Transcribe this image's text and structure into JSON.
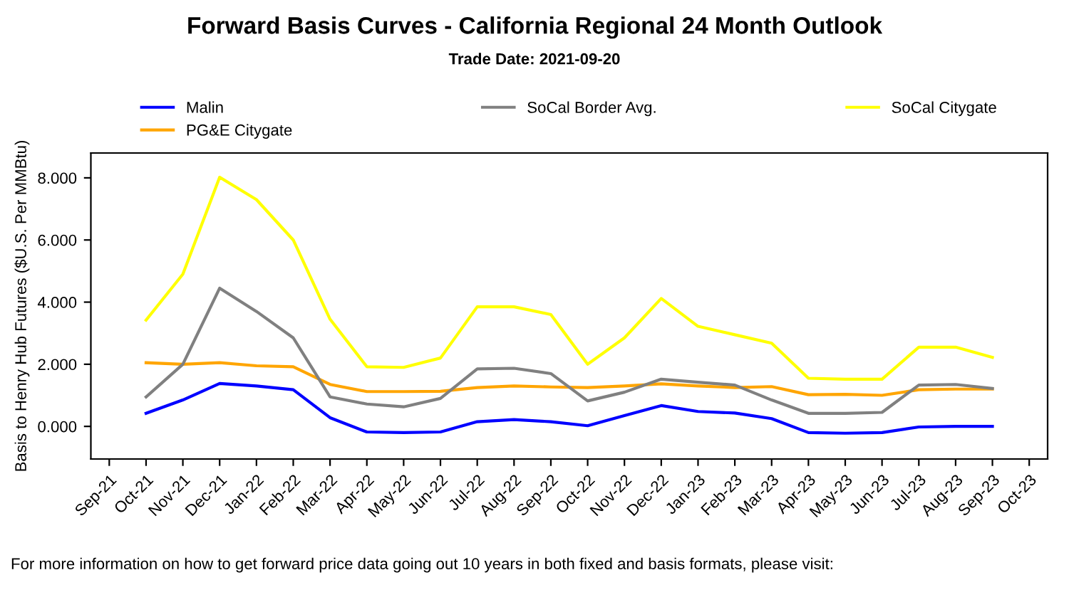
{
  "chart_data": {
    "type": "line",
    "title": "Forward Basis Curves - California Regional 24 Month Outlook",
    "subtitle": "Trade Date: 2021-09-20",
    "ylabel": "Basis to Henry Hub Futures ($U.S. Per MMBtu)",
    "categories": [
      "Sep-21",
      "Oct-21",
      "Nov-21",
      "Dec-21",
      "Jan-22",
      "Feb-22",
      "Mar-22",
      "Apr-22",
      "May-22",
      "Jun-22",
      "Jul-22",
      "Aug-22",
      "Sep-22",
      "Oct-22",
      "Nov-22",
      "Dec-22",
      "Jan-23",
      "Feb-23",
      "Mar-23",
      "Apr-23",
      "May-23",
      "Jun-23",
      "Jul-23",
      "Aug-23",
      "Sep-23",
      "Oct-23"
    ],
    "series": [
      {
        "name": "Malin",
        "color": "#0000ff",
        "values": [
          null,
          0.42,
          0.85,
          1.38,
          1.3,
          1.18,
          0.28,
          -0.18,
          -0.2,
          -0.18,
          0.15,
          0.22,
          0.15,
          0.02,
          0.35,
          0.67,
          0.48,
          0.43,
          0.25,
          -0.2,
          -0.22,
          -0.2,
          -0.02,
          0.0,
          0.0,
          null
        ]
      },
      {
        "name": "PG&E Citygate",
        "color": "#ffa500",
        "values": [
          null,
          2.05,
          2.0,
          2.05,
          1.95,
          1.92,
          1.35,
          1.12,
          1.12,
          1.13,
          1.25,
          1.3,
          1.27,
          1.25,
          1.3,
          1.37,
          1.3,
          1.25,
          1.28,
          1.02,
          1.03,
          1.0,
          1.18,
          1.2,
          1.2,
          null
        ]
      },
      {
        "name": "SoCal Border Avg.",
        "color": "#808080",
        "values": [
          null,
          0.95,
          2.0,
          4.45,
          3.7,
          2.85,
          0.95,
          0.72,
          0.63,
          0.9,
          1.85,
          1.87,
          1.7,
          0.82,
          1.1,
          1.52,
          1.42,
          1.33,
          0.85,
          0.42,
          0.42,
          0.45,
          1.33,
          1.35,
          1.22,
          null
        ]
      },
      {
        "name": "SoCal Citygate",
        "color": "#ffff00",
        "values": [
          null,
          3.42,
          4.9,
          8.02,
          7.3,
          6.0,
          3.45,
          1.92,
          1.9,
          2.2,
          3.85,
          3.85,
          3.6,
          2.0,
          2.85,
          4.12,
          3.22,
          2.95,
          2.68,
          1.55,
          1.52,
          1.52,
          2.55,
          2.55,
          2.22,
          null
        ]
      }
    ],
    "ylim": [
      -1.05,
      8.8
    ],
    "yticks": [
      {
        "value": 0,
        "label": "0.000"
      },
      {
        "value": 2,
        "label": "2.000"
      },
      {
        "value": 4,
        "label": "4.000"
      },
      {
        "value": 6,
        "label": "6.000"
      },
      {
        "value": 8,
        "label": "8.000"
      }
    ],
    "grid": false,
    "legend": "top",
    "marker": "none",
    "line_style": "solid",
    "annotations": [
      "For more information on how to get forward price data going out 10 years in both fixed and basis formats, please visit:"
    ]
  }
}
